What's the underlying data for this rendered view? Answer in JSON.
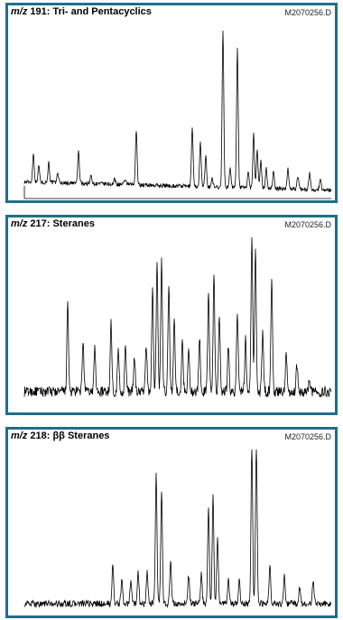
{
  "chart_data": [
    {
      "type": "line",
      "title_mz": "m/z",
      "title_rest": " 191: Tri- and Pentacyclics",
      "file": "M2070256.D",
      "baseline": 0.04,
      "noise": 0.012,
      "slope": [
        0.05,
        0.0
      ],
      "peaks": [
        [
          10,
          0.17
        ],
        [
          16,
          0.1
        ],
        [
          27,
          0.12
        ],
        [
          37,
          0.06
        ],
        [
          60,
          0.19
        ],
        [
          74,
          0.05
        ],
        [
          100,
          0.03
        ],
        [
          112,
          0.03
        ],
        [
          124,
          0.33
        ],
        [
          186,
          0.36
        ],
        [
          195,
          0.26
        ],
        [
          201,
          0.18
        ],
        [
          208,
          0.05
        ],
        [
          220,
          0.94
        ],
        [
          228,
          0.12
        ],
        [
          236,
          0.84
        ],
        [
          248,
          0.1
        ],
        [
          254,
          0.33
        ],
        [
          258,
          0.23
        ],
        [
          262,
          0.16
        ],
        [
          268,
          0.12
        ],
        [
          276,
          0.1
        ],
        [
          292,
          0.13
        ],
        [
          303,
          0.08
        ],
        [
          316,
          0.1
        ],
        [
          328,
          0.07
        ]
      ]
    },
    {
      "type": "line",
      "title_mz": "m/z",
      "title_rest": " 217: Steranes",
      "file": "M2070256.D",
      "baseline": 0.1,
      "noise": 0.03,
      "slope": [
        0.0,
        0.0
      ],
      "peaks": [
        [
          48,
          0.5
        ],
        [
          65,
          0.3
        ],
        [
          78,
          0.25
        ],
        [
          96,
          0.4
        ],
        [
          104,
          0.25
        ],
        [
          112,
          0.26
        ],
        [
          122,
          0.2
        ],
        [
          135,
          0.28
        ],
        [
          142,
          0.6
        ],
        [
          147,
          0.77
        ],
        [
          152,
          0.76
        ],
        [
          160,
          0.62
        ],
        [
          166,
          0.42
        ],
        [
          175,
          0.28
        ],
        [
          182,
          0.25
        ],
        [
          194,
          0.32
        ],
        [
          204,
          0.58
        ],
        [
          210,
          0.68
        ],
        [
          216,
          0.46
        ],
        [
          226,
          0.28
        ],
        [
          236,
          0.46
        ],
        [
          245,
          0.3
        ],
        [
          252,
          0.9
        ],
        [
          256,
          0.84
        ],
        [
          264,
          0.35
        ],
        [
          274,
          0.64
        ],
        [
          290,
          0.22
        ],
        [
          302,
          0.16
        ],
        [
          316,
          0.08
        ]
      ]
    },
    {
      "type": "line",
      "title_mz": "m/z",
      "title_rest": " 218: ββ Steranes",
      "file": "M2070256.D",
      "baseline": 0.05,
      "noise": 0.02,
      "slope": [
        0.0,
        0.0
      ],
      "peaks": [
        [
          98,
          0.24
        ],
        [
          108,
          0.15
        ],
        [
          118,
          0.15
        ],
        [
          126,
          0.2
        ],
        [
          136,
          0.19
        ],
        [
          146,
          0.8
        ],
        [
          152,
          0.7
        ],
        [
          162,
          0.26
        ],
        [
          182,
          0.18
        ],
        [
          196,
          0.19
        ],
        [
          204,
          0.6
        ],
        [
          209,
          0.66
        ],
        [
          214,
          0.4
        ],
        [
          226,
          0.16
        ],
        [
          238,
          0.15
        ],
        [
          252,
          0.98
        ],
        [
          257,
          0.98
        ],
        [
          272,
          0.25
        ],
        [
          288,
          0.18
        ],
        [
          305,
          0.1
        ],
        [
          320,
          0.15
        ]
      ]
    }
  ]
}
